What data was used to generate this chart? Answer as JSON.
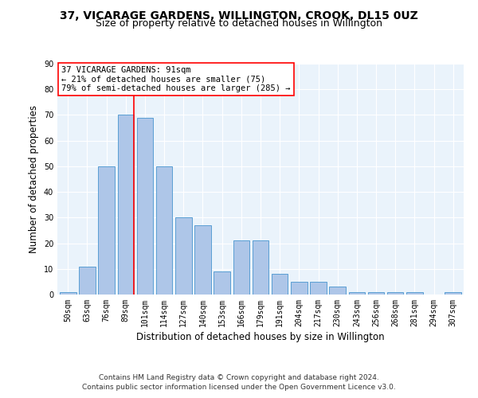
{
  "title": "37, VICARAGE GARDENS, WILLINGTON, CROOK, DL15 0UZ",
  "subtitle": "Size of property relative to detached houses in Willington",
  "xlabel": "Distribution of detached houses by size in Willington",
  "ylabel": "Number of detached properties",
  "bar_color": "#aec6e8",
  "bar_edge_color": "#5a9fd4",
  "background_color": "#eaf3fb",
  "categories": [
    "50sqm",
    "63sqm",
    "76sqm",
    "89sqm",
    "101sqm",
    "114sqm",
    "127sqm",
    "140sqm",
    "153sqm",
    "166sqm",
    "179sqm",
    "191sqm",
    "204sqm",
    "217sqm",
    "230sqm",
    "243sqm",
    "256sqm",
    "268sqm",
    "281sqm",
    "294sqm",
    "307sqm"
  ],
  "values": [
    1,
    11,
    50,
    70,
    69,
    50,
    30,
    27,
    9,
    21,
    21,
    8,
    5,
    5,
    3,
    1,
    1,
    1,
    1,
    0,
    1
  ],
  "ylim": [
    0,
    90
  ],
  "yticks": [
    0,
    10,
    20,
    30,
    40,
    50,
    60,
    70,
    80,
    90
  ],
  "property_bar_index": 3,
  "annotation_lines": [
    "37 VICARAGE GARDENS: 91sqm",
    "← 21% of detached houses are smaller (75)",
    "79% of semi-detached houses are larger (285) →"
  ],
  "footnote1": "Contains HM Land Registry data © Crown copyright and database right 2024.",
  "footnote2": "Contains public sector information licensed under the Open Government Licence v3.0.",
  "title_fontsize": 10,
  "subtitle_fontsize": 9,
  "xlabel_fontsize": 8.5,
  "ylabel_fontsize": 8.5,
  "tick_fontsize": 7,
  "annotation_fontsize": 7.5,
  "footnote_fontsize": 6.5
}
